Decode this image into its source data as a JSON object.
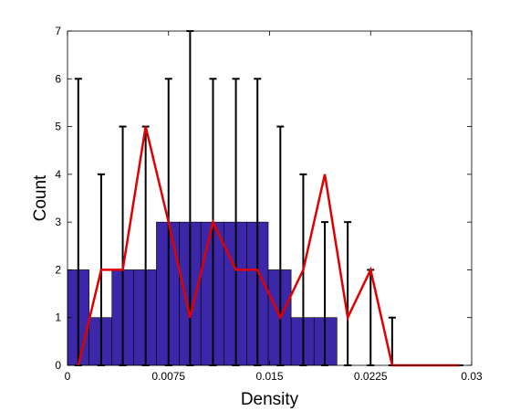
{
  "chart_data": {
    "type": "bar",
    "xlabel": "Density",
    "ylabel": "Count",
    "xlim": [
      0,
      0.03
    ],
    "ylim": [
      0,
      7
    ],
    "x_ticks": [
      0,
      0.0075,
      0.015,
      0.0225,
      0.03
    ],
    "x_tick_labels": [
      "0",
      "0.0075",
      "0.015",
      "0.0225",
      "0.03"
    ],
    "y_ticks": [
      0,
      1,
      2,
      3,
      4,
      5,
      6,
      7
    ],
    "y_tick_labels": [
      "0",
      "1",
      "2",
      "3",
      "4",
      "5",
      "6",
      "7"
    ],
    "grid": false,
    "colors": {
      "bars": "#3b27a8",
      "bar_edge": "#000000",
      "line": "#e00000",
      "error_bars": "#000000"
    },
    "bars": [
      {
        "x0": 0.0,
        "x1": 0.0016,
        "count": 2
      },
      {
        "x0": 0.0016,
        "x1": 0.0033,
        "count": 1
      },
      {
        "x0": 0.0033,
        "x1": 0.0049,
        "count": 2
      },
      {
        "x0": 0.0049,
        "x1": 0.0066,
        "count": 2
      },
      {
        "x0": 0.0066,
        "x1": 0.0083,
        "count": 3
      },
      {
        "x0": 0.0083,
        "x1": 0.0099,
        "count": 3
      },
      {
        "x0": 0.0099,
        "x1": 0.0116,
        "count": 3
      },
      {
        "x0": 0.0116,
        "x1": 0.0133,
        "count": 3
      },
      {
        "x0": 0.0133,
        "x1": 0.0149,
        "count": 3
      },
      {
        "x0": 0.0149,
        "x1": 0.0166,
        "count": 2
      },
      {
        "x0": 0.0166,
        "x1": 0.0183,
        "count": 1
      },
      {
        "x0": 0.0183,
        "x1": 0.02,
        "count": 1
      }
    ],
    "line_series": {
      "x": [
        0.0008,
        0.0025,
        0.0041,
        0.0058,
        0.0075,
        0.0091,
        0.0108,
        0.0125,
        0.0141,
        0.0158,
        0.0175,
        0.0191,
        0.0208,
        0.0225,
        0.0241,
        0.0258,
        0.0275,
        0.0291
      ],
      "values": [
        0,
        2,
        2,
        5,
        3,
        1,
        3,
        2,
        2,
        1,
        2,
        4,
        1,
        2,
        0,
        0,
        0,
        0
      ]
    },
    "error_bars": {
      "x": [
        0.0008,
        0.0025,
        0.0041,
        0.0058,
        0.0075,
        0.0091,
        0.0108,
        0.0125,
        0.0141,
        0.0158,
        0.0175,
        0.0191,
        0.0208,
        0.0225,
        0.0241,
        0.0258,
        0.0275,
        0.0291
      ],
      "upper": [
        6,
        4,
        5,
        5,
        6,
        7,
        6,
        6,
        6,
        5,
        4,
        3,
        3,
        2,
        1,
        0,
        0,
        0
      ]
    }
  }
}
